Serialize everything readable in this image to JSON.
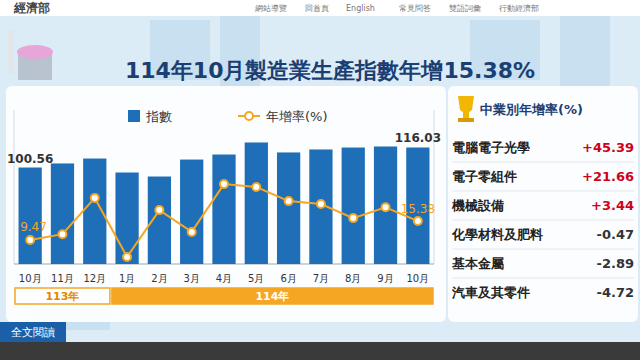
{
  "page": {
    "org": "經濟部",
    "nav": [
      "網站導覽",
      "回首頁",
      "English",
      "常見問答",
      "雙語詞彙",
      "行動經濟部"
    ],
    "button": "全文閱讀"
  },
  "chart_data": [
    {
      "type": "bar",
      "title": "114年10月製造業生產指數年增15.38%",
      "categories": [
        "10月",
        "11月",
        "12月",
        "1月",
        "2月",
        "3月",
        "4月",
        "5月",
        "6月",
        "7月",
        "8月",
        "9月",
        "10月"
      ],
      "groups": [
        {
          "label": "113年",
          "count": 3
        },
        {
          "label": "114年",
          "count": 10
        }
      ],
      "series": [
        {
          "name": "指數",
          "type": "bar",
          "color": "#1f6fb8",
          "values": [
            100.56,
            103.7,
            107.5,
            96.7,
            93.6,
            106.7,
            110.6,
            119.9,
            112.2,
            114.5,
            116.0,
            116.8,
            116.03
          ],
          "value_labels": [
            "100.56",
            null,
            null,
            null,
            null,
            null,
            null,
            null,
            null,
            null,
            null,
            null,
            "116.03"
          ]
        },
        {
          "name": "年增率(%)",
          "type": "line",
          "axis": "y2",
          "color": "#f5a623",
          "marker": "circle",
          "values": [
            9.47,
            11.3,
            22.6,
            4.2,
            18.8,
            12.0,
            26.9,
            26.0,
            21.6,
            20.7,
            16.3,
            19.7,
            15.38
          ],
          "value_labels": [
            "9.47",
            null,
            null,
            null,
            null,
            null,
            null,
            null,
            null,
            null,
            null,
            null,
            "15.38"
          ]
        }
      ],
      "ylim": [
        26,
        145
      ],
      "yticks": [],
      "y2lim": [
        2,
        50
      ],
      "y2ticks": [],
      "tick_labels": "x",
      "grid": false,
      "legend": "top"
    },
    {
      "type": "table",
      "title": "中業別年增率(%)",
      "categories": [
        "電腦電子光學",
        "電子零組件",
        "機械設備",
        "化學材料及肥料",
        "基本金屬",
        "汽車及其零件"
      ],
      "values": [
        45.39,
        21.66,
        3.44,
        -0.47,
        -2.89,
        -4.72
      ],
      "value_labels": [
        "+45.39",
        "+21.66",
        "+3.44",
        "-0.47",
        "-2.89",
        "-4.72"
      ],
      "colors": [
        "#d0021b",
        "#d0021b",
        "#d0021b",
        "#333333",
        "#333333",
        "#333333"
      ]
    }
  ]
}
